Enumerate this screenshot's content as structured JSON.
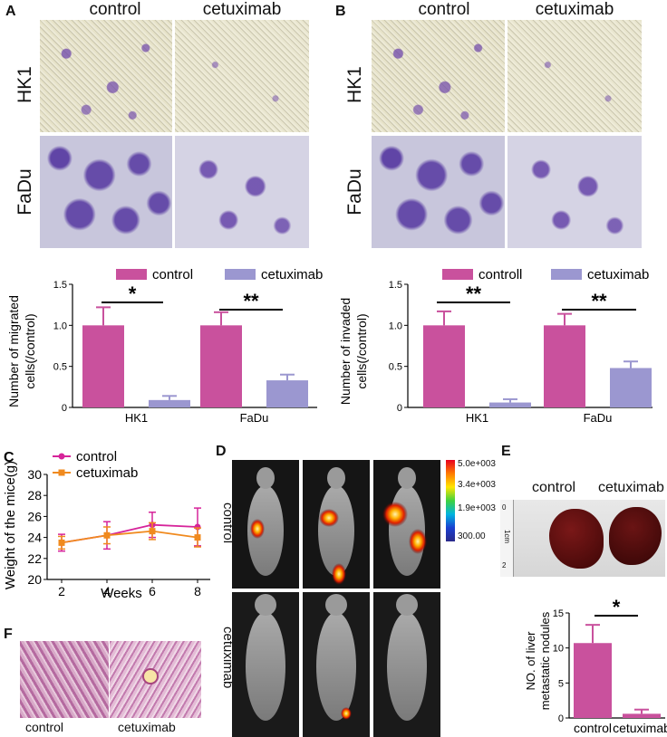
{
  "panels": {
    "A": {
      "letter": "A",
      "col_labels": [
        "control",
        "cetuximab"
      ],
      "row_labels": [
        "HK1",
        "FaDu"
      ],
      "chart": {
        "legend": [
          "control",
          "cetuximab"
        ],
        "ylabel_line1": "Number of migrated",
        "ylabel_line2": "cells(/control)",
        "categories": [
          "HK1",
          "FaDu"
        ],
        "yticks": [
          "0",
          "0.5",
          "1.0",
          "1.5"
        ],
        "sig": [
          "*",
          "**"
        ]
      }
    },
    "B": {
      "letter": "B",
      "col_labels": [
        "control",
        "cetuximab"
      ],
      "row_labels": [
        "HK1",
        "FaDu"
      ],
      "chart": {
        "legend": [
          "controll",
          "cetuximab"
        ],
        "ylabel_line1": "Number of invaded",
        "ylabel_line2": "cells(/control)",
        "categories": [
          "HK1",
          "FaDu"
        ],
        "yticks": [
          "0",
          "0.5",
          "1.0",
          "1.5"
        ],
        "sig": [
          "**",
          "**"
        ]
      }
    },
    "C": {
      "letter": "C",
      "legend": [
        "control",
        "cetuximab"
      ],
      "ylabel": "Weight of the mice(g)",
      "xlabel": "Weeks",
      "xticks": [
        "2",
        "4",
        "6",
        "8"
      ],
      "yticks": [
        "20",
        "22",
        "24",
        "26",
        "28",
        "30"
      ]
    },
    "D": {
      "letter": "D",
      "row_labels": [
        "control",
        "cetuximab"
      ],
      "scale_labels": [
        "5.0e+003",
        "3.4e+003",
        "1.9e+003",
        "300.00"
      ]
    },
    "E": {
      "letter": "E",
      "col_labels": [
        "control",
        "cetuximab"
      ],
      "ruler_labels": [
        "0",
        "1cm",
        "2"
      ],
      "chart": {
        "ylabel_line1": "NO. of liver",
        "ylabel_line2": "metastatic  nodules",
        "categories": [
          "control",
          "cetuximab"
        ],
        "yticks": [
          "0",
          "5",
          "10",
          "15"
        ],
        "sig": [
          "*"
        ]
      }
    },
    "F": {
      "letter": "F",
      "col_labels": [
        "control",
        "cetuximab"
      ]
    }
  },
  "colors": {
    "control": "#c9519d",
    "cetuximab": "#9b97d0",
    "cetuximab_E": "#f0c87a",
    "line_control": "#d6249a",
    "line_cetuximab": "#f08a1e"
  },
  "chart_data": [
    {
      "type": "bar",
      "categories": [
        "HK1",
        "FaDu"
      ],
      "ylim": [
        0,
        1.5
      ],
      "series": [
        {
          "name": "control",
          "values": [
            1.0,
            1.0
          ],
          "errors": [
            0.22,
            0.16
          ]
        },
        {
          "name": "cetuximab",
          "values": [
            0.09,
            0.33
          ],
          "errors": [
            0.05,
            0.07
          ]
        }
      ]
    },
    {
      "type": "bar",
      "categories": [
        "HK1",
        "FaDu"
      ],
      "ylim": [
        0,
        1.5
      ],
      "series": [
        {
          "name": "controll",
          "values": [
            1.0,
            1.0
          ],
          "errors": [
            0.17,
            0.14
          ]
        },
        {
          "name": "cetuximab",
          "values": [
            0.06,
            0.48
          ],
          "errors": [
            0.04,
            0.08
          ]
        }
      ]
    },
    {
      "type": "line",
      "x": [
        2,
        4,
        6,
        8
      ],
      "ylim": [
        20,
        30
      ],
      "series": [
        {
          "name": "control",
          "values": [
            23.5,
            24.2,
            25.2,
            25.0
          ],
          "errors": [
            0.8,
            1.3,
            1.2,
            1.8
          ]
        },
        {
          "name": "cetuximab",
          "values": [
            23.5,
            24.2,
            24.6,
            24.0
          ],
          "errors": [
            0.6,
            0.8,
            0.8,
            0.9
          ]
        }
      ]
    },
    {
      "type": "bar",
      "categories": [
        "control",
        "cetuximab"
      ],
      "ylim": [
        0,
        15
      ],
      "series": [
        {
          "values": [
            10.7,
            0.6
          ],
          "errors": [
            2.6,
            0.6
          ]
        }
      ]
    }
  ]
}
